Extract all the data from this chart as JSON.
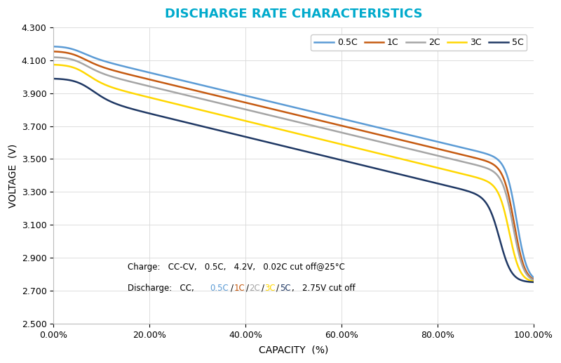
{
  "title": "DISCHARGE RATE CHARACTERISTICS",
  "title_color": "#00AACC",
  "xlabel": "CAPACITY  (%)",
  "ylabel": "VOLTAGE  (V)",
  "xlim": [
    0,
    100
  ],
  "ylim": [
    2.5,
    4.3
  ],
  "yticks": [
    2.5,
    2.7,
    2.9,
    3.1,
    3.3,
    3.5,
    3.7,
    3.9,
    4.1,
    4.3
  ],
  "xtick_positions": [
    0,
    20,
    40,
    60,
    80,
    100
  ],
  "xtick_labels": [
    "0.00%",
    "20.00%",
    "40.00%",
    "60.00%",
    "80.00%",
    "100.00%"
  ],
  "series": [
    {
      "label": "0.5C",
      "color": "#5B9BD5",
      "v_start": 4.185,
      "v_after_init": 4.13,
      "v_mid_end": 3.49,
      "v_end": 2.75,
      "init_x": 0.05,
      "drop_x": 0.965,
      "s1_steep": 55,
      "s2_steep": 90
    },
    {
      "label": "1C",
      "color": "#C55A11",
      "v_start": 4.155,
      "v_after_init": 4.085,
      "v_mid_end": 3.45,
      "v_end": 2.75,
      "init_x": 0.055,
      "drop_x": 0.96,
      "s1_steep": 55,
      "s2_steep": 90
    },
    {
      "label": "2C",
      "color": "#A5A5A5",
      "v_start": 4.12,
      "v_after_init": 4.04,
      "v_mid_end": 3.41,
      "v_end": 2.75,
      "init_x": 0.06,
      "drop_x": 0.958,
      "s1_steep": 55,
      "s2_steep": 90
    },
    {
      "label": "3C",
      "color": "#FFD700",
      "v_start": 4.075,
      "v_after_init": 3.97,
      "v_mid_end": 3.34,
      "v_end": 2.75,
      "init_x": 0.065,
      "drop_x": 0.95,
      "s1_steep": 55,
      "s2_steep": 90
    },
    {
      "label": "5C",
      "color": "#1F3864",
      "v_start": 3.99,
      "v_after_init": 3.865,
      "v_mid_end": 3.26,
      "v_end": 2.75,
      "init_x": 0.075,
      "drop_x": 0.93,
      "s1_steep": 50,
      "s2_steep": 80
    }
  ],
  "annotation_line1_black": "Charge:  CC-CV,  0.5C,  4.2V,  0.02C cut off@25",
  "annotation_line1_super": "°C",
  "annotation_line2_prefix": "Discharge:  CC,  ",
  "annotation_line2_colored": [
    "0.5C",
    "1C",
    "2C",
    "3C",
    "5C"
  ],
  "annotation_line2_suffix": ",   2.75V cut off",
  "annotation_colors": [
    "#5B9BD5",
    "#C55A11",
    "#A5A5A5",
    "#FFD700",
    "#1F3864"
  ],
  "figsize": [
    8.0,
    5.17
  ],
  "dpi": 100
}
